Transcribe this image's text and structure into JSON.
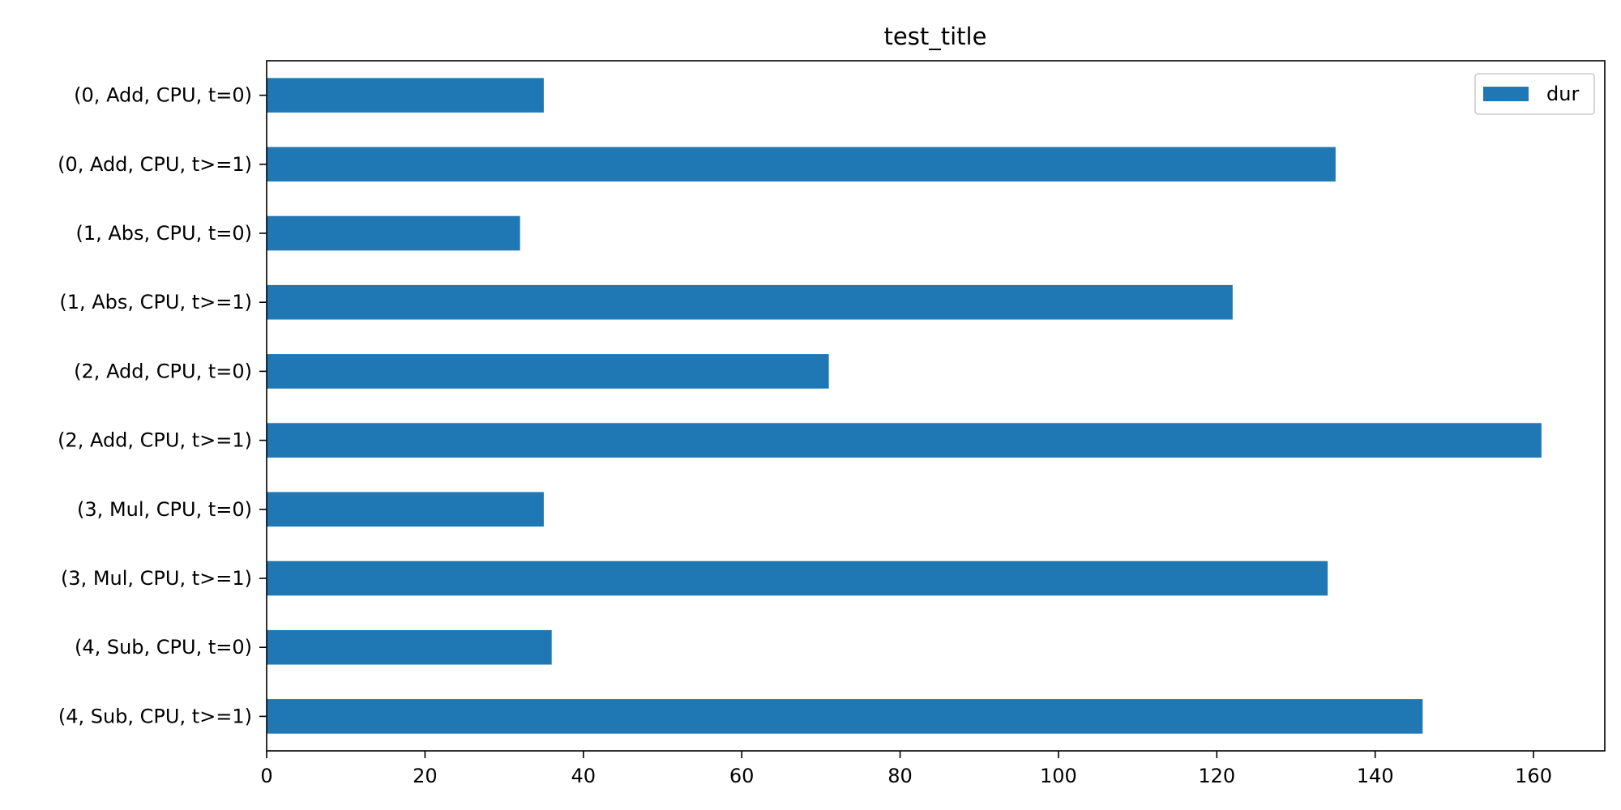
{
  "chart_data": {
    "type": "bar",
    "orientation": "horizontal",
    "title": "test_title",
    "xlabel": "",
    "ylabel": "",
    "categories": [
      "(0, Add, CPU, t=0)",
      "(0, Add, CPU, t>=1)",
      "(1, Abs, CPU, t=0)",
      "(1, Abs, CPU, t>=1)",
      "(2, Add, CPU, t=0)",
      "(2, Add, CPU, t>=1)",
      "(3, Mul, CPU, t=0)",
      "(3, Mul, CPU, t>=1)",
      "(4, Sub, CPU, t=0)",
      "(4, Sub, CPU, t>=1)"
    ],
    "series": [
      {
        "name": "dur",
        "color": "#1f77b4",
        "values": [
          35,
          135,
          32,
          122,
          71,
          161,
          35,
          134,
          36,
          146
        ]
      }
    ],
    "xlim": [
      0,
      169
    ],
    "xticks": [
      0,
      20,
      40,
      60,
      80,
      100,
      120,
      140,
      160
    ],
    "grid": false,
    "legend_position": "top-right"
  }
}
